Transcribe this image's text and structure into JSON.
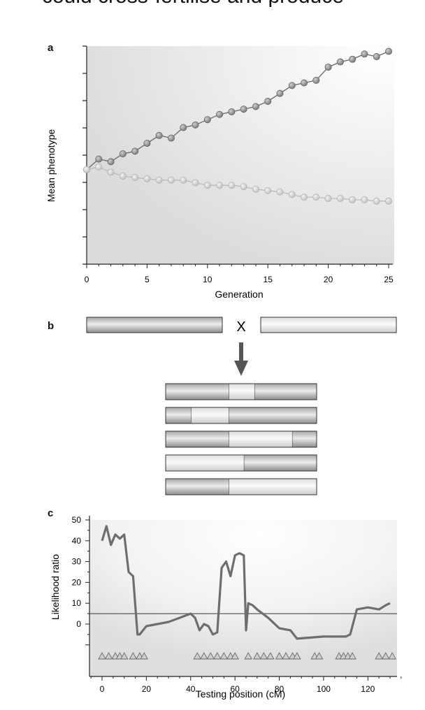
{
  "heading_fragment": "could cross-fertilise and produce",
  "panel_a": {
    "label": "a",
    "chart_data": {
      "type": "line",
      "xlabel": "Generation",
      "ylabel": "Mean phenotype",
      "xlim": [
        0,
        25
      ],
      "xticks": [
        0,
        5,
        10,
        15,
        20,
        25
      ],
      "x": [
        0,
        1,
        2,
        3,
        4,
        5,
        6,
        7,
        8,
        9,
        10,
        11,
        12,
        13,
        14,
        15,
        16,
        17,
        18,
        19,
        20,
        21,
        22,
        23,
        24,
        25
      ],
      "series": [
        {
          "name": "upper line (dark)",
          "color": "#8c8c8c",
          "values": [
            5.6,
            6.0,
            5.9,
            6.2,
            6.3,
            6.6,
            6.9,
            6.8,
            7.2,
            7.3,
            7.5,
            7.7,
            7.8,
            7.9,
            8.0,
            8.2,
            8.5,
            8.8,
            8.9,
            9.0,
            9.5,
            9.7,
            9.8,
            10.0,
            9.9,
            10.1
          ]
        },
        {
          "name": "lower line (light)",
          "color": "#d3d3d3",
          "values": [
            5.6,
            5.7,
            5.5,
            5.35,
            5.3,
            5.25,
            5.2,
            5.2,
            5.2,
            5.1,
            5.0,
            5.0,
            5.0,
            4.95,
            4.85,
            4.8,
            4.75,
            4.65,
            4.55,
            4.55,
            4.5,
            4.5,
            4.45,
            4.45,
            4.4,
            4.4
          ]
        }
      ]
    }
  },
  "panel_b": {
    "label": "b",
    "cross_symbol": "X",
    "parents": [
      {
        "shade": "dark"
      },
      {
        "shade": "light"
      }
    ],
    "offspring": [
      {
        "segments": [
          {
            "len": 0.42,
            "shade": "dark"
          },
          {
            "len": 0.17,
            "shade": "light"
          },
          {
            "len": 0.41,
            "shade": "dark"
          }
        ]
      },
      {
        "segments": [
          {
            "len": 0.17,
            "shade": "dark"
          },
          {
            "len": 0.25,
            "shade": "light"
          },
          {
            "len": 0.58,
            "shade": "dark"
          }
        ]
      },
      {
        "segments": [
          {
            "len": 0.42,
            "shade": "dark"
          },
          {
            "len": 0.42,
            "shade": "light"
          },
          {
            "len": 0.16,
            "shade": "dark"
          }
        ]
      },
      {
        "segments": [
          {
            "len": 0.52,
            "shade": "light"
          },
          {
            "len": 0.48,
            "shade": "dark"
          }
        ]
      },
      {
        "segments": [
          {
            "len": 0.42,
            "shade": "dark"
          },
          {
            "len": 0.58,
            "shade": "light"
          }
        ]
      }
    ]
  },
  "panel_c": {
    "label": "c",
    "chart_data": {
      "type": "line",
      "xlabel": "Testing position (cM)",
      "ylabel": "Likelihood ratio",
      "xlim": [
        -5,
        135
      ],
      "ylim": [
        -12,
        52
      ],
      "xticks": [
        0,
        20,
        40,
        60,
        80,
        100,
        120
      ],
      "yticks": [
        0,
        10,
        20,
        30,
        40,
        50
      ],
      "threshold": 5,
      "x": [
        0,
        2,
        4,
        6,
        8,
        10,
        12,
        14,
        16,
        17,
        20,
        25,
        30,
        35,
        40,
        42,
        44,
        46,
        48,
        50,
        52,
        54,
        56,
        58,
        60,
        62,
        64,
        65,
        66,
        68,
        70,
        75,
        80,
        85,
        88,
        100,
        110,
        112,
        115,
        120,
        125,
        128,
        130
      ],
      "y": [
        40,
        47,
        38,
        43,
        41,
        43,
        25,
        23,
        -5,
        -5,
        -1,
        0,
        1,
        3,
        5,
        3,
        -3,
        0,
        -1,
        -5,
        -4,
        27,
        30,
        23,
        33,
        34,
        33,
        -3,
        10,
        9,
        7,
        3,
        -2,
        -3,
        -7,
        -6,
        -6,
        -5,
        7,
        8,
        7,
        9,
        10
      ],
      "marker_positions": [
        0,
        3,
        6,
        8,
        10,
        14,
        17,
        19,
        43,
        46,
        49,
        52,
        55,
        58,
        60,
        66,
        70,
        73,
        76,
        80,
        83,
        86,
        88,
        96,
        98,
        107,
        109,
        111,
        113,
        125,
        128,
        131
      ]
    }
  }
}
